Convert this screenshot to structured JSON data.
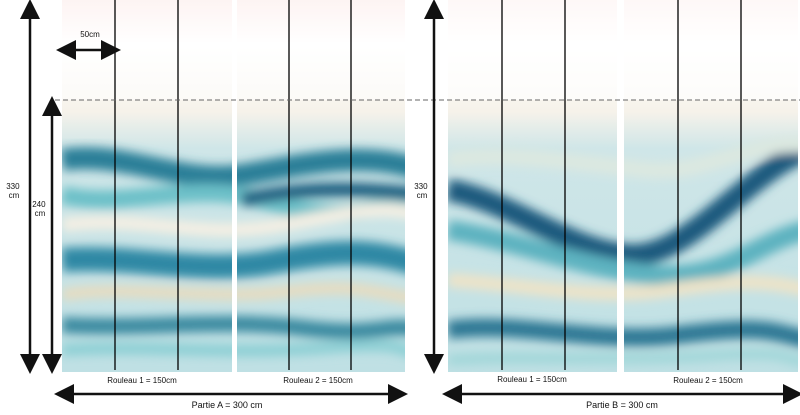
{
  "parts": [
    {
      "label": "Partie A = 300 cm",
      "height_label": [
        "330",
        "cm"
      ],
      "visible_height_label": [
        "240",
        "cm"
      ],
      "strip_width_label": "50cm",
      "rolls": [
        {
          "label": "Rouleau 1 = 150cm"
        },
        {
          "label": "Rouleau 2 = 150cm"
        }
      ]
    },
    {
      "label": "Partie B = 300 cm",
      "height_label": [
        "330",
        "cm"
      ],
      "rolls": [
        {
          "label": "Rouleau 1 = 150cm"
        },
        {
          "label": "Rouleau 2 = 150cm"
        }
      ]
    }
  ]
}
